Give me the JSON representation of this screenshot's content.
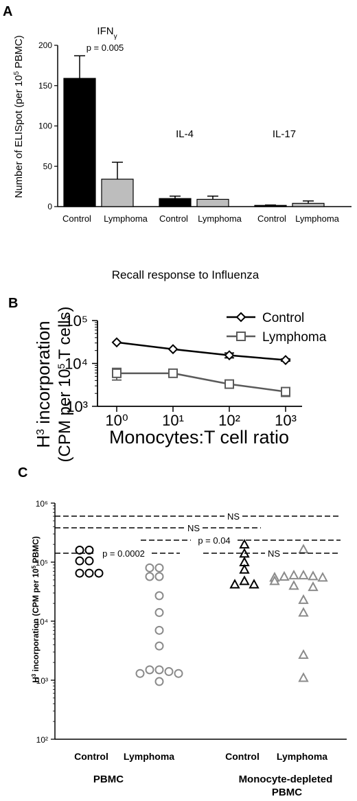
{
  "colors": {
    "control_bar": "#000000",
    "lymphoma_bar": "#bdbdbd",
    "control_line": "#000000",
    "lymphoma_line": "#5a5a5a",
    "lymphoma_points": "#8a8a8a",
    "axis": "#000000"
  },
  "chart_data": [
    {
      "id": "A",
      "panel_label": "A",
      "type": "bar",
      "ylabel": "Number of ELISpot (per 10⁵ PBMC)",
      "xlabel": "Recall response to Influenza",
      "ylim": [
        0,
        200
      ],
      "yticks": [
        "0",
        "50",
        "100",
        "150",
        "200"
      ],
      "groups": [
        {
          "name": "IFNγ",
          "bars": [
            {
              "label": "Control",
              "series": "Control",
              "value": 159,
              "error": 28
            },
            {
              "label": "Lymphoma",
              "series": "Lymphoma",
              "value": 34,
              "error": 21
            }
          ],
          "annotation": "p = 0.005"
        },
        {
          "name": "IL-4",
          "bars": [
            {
              "label": "Control",
              "series": "Control",
              "value": 10,
              "error": 3
            },
            {
              "label": "Lymphoma",
              "series": "Lymphoma",
              "value": 9,
              "error": 4
            }
          ]
        },
        {
          "name": "IL-17",
          "bars": [
            {
              "label": "Control",
              "series": "Control",
              "value": 1.5,
              "error": 0.5
            },
            {
              "label": "Lymphoma",
              "series": "Lymphoma",
              "value": 4,
              "error": 3
            }
          ]
        }
      ]
    },
    {
      "id": "B",
      "panel_label": "B",
      "type": "line",
      "xlabel": "Monocytes:T cell ratio",
      "ylabel_line1": "H³ incorporation",
      "ylabel_line2": "(CPM per 10⁵ T cells)",
      "xscale": "log",
      "yscale": "log",
      "x": [
        1,
        10,
        100,
        1000
      ],
      "xticks": [
        "10⁰",
        "10¹",
        "10²",
        "10³"
      ],
      "yticks": [
        "10³",
        "10⁴",
        "10⁵"
      ],
      "ylim": [
        1000,
        100000
      ],
      "legend_position": "top-right",
      "series": [
        {
          "name": "Control",
          "marker": "diamond",
          "values": [
            31000,
            21500,
            15500,
            12000
          ],
          "errors": [
            0,
            0,
            2000,
            700
          ]
        },
        {
          "name": "Lymphoma",
          "marker": "square",
          "values": [
            5900,
            5900,
            3300,
            2200
          ],
          "errors": [
            1800,
            900,
            600,
            500
          ]
        }
      ]
    },
    {
      "id": "C",
      "panel_label": "C",
      "type": "scatter",
      "ylabel": "H³ incorporation (CPM per 10⁵ PBMC)",
      "yscale": "log",
      "ylim": [
        100,
        1000000
      ],
      "yticks": [
        "10²",
        "10³",
        "10⁴",
        "10⁵",
        "10⁶"
      ],
      "group_labels": [
        "PBMC",
        "Monocyte-depleted PBMC"
      ],
      "categories": [
        {
          "label": "Control",
          "marker": "circle",
          "color_key": "control",
          "values": [
            160000,
            160000,
            105000,
            105000,
            65000,
            65000,
            65000
          ]
        },
        {
          "label": "Lymphoma",
          "marker": "circle",
          "color_key": "lymphoma",
          "values": [
            80000,
            80000,
            57000,
            57000,
            27000,
            14000,
            7000,
            3800,
            1500,
            1500,
            1400,
            1300,
            1300,
            950
          ]
        },
        {
          "label": "Control",
          "marker": "triangle",
          "color_key": "control",
          "values": [
            200000,
            140000,
            100000,
            75000,
            48000,
            42000,
            42000
          ]
        },
        {
          "label": "Lymphoma",
          "marker": "triangle",
          "color_key": "lymphoma",
          "values": [
            165000,
            60000,
            60000,
            58000,
            57000,
            55000,
            55000,
            55000,
            48000,
            40000,
            38000,
            23000,
            14000,
            2700,
            1100
          ]
        }
      ],
      "comparisons": [
        {
          "text": "NS"
        },
        {
          "text": "NS"
        },
        {
          "text": "p = 0.04"
        },
        {
          "text": "p = 0.0002"
        },
        {
          "text": "NS"
        }
      ]
    }
  ]
}
